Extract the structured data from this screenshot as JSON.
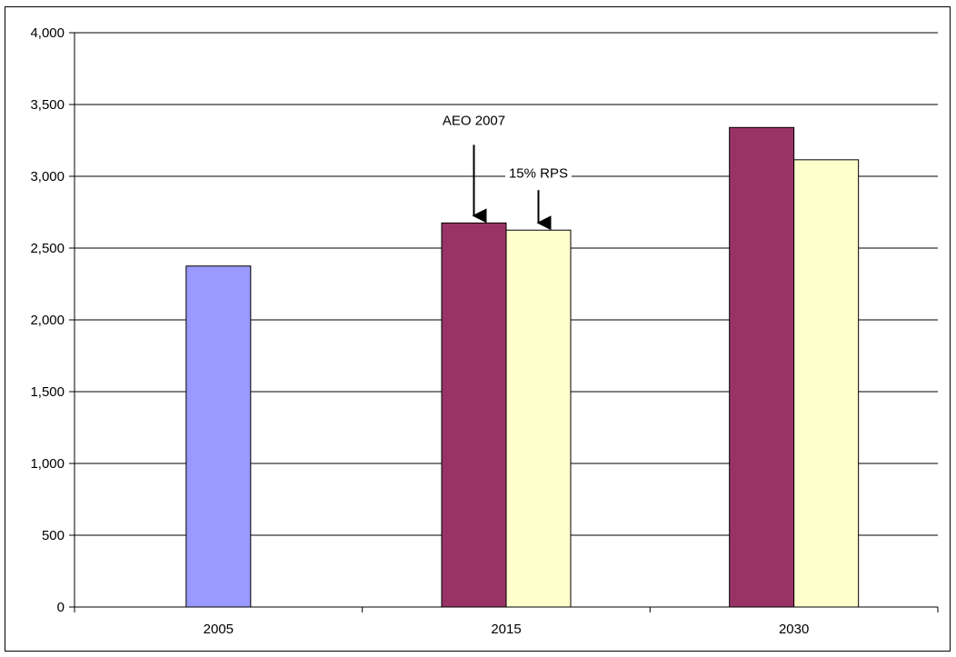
{
  "chart_data": {
    "type": "bar",
    "title": "",
    "xlabel": "",
    "ylabel": "",
    "categories": [
      "2005",
      "2015",
      "2030"
    ],
    "ylim": [
      0,
      4000
    ],
    "y_ticks": [
      "0",
      "500",
      "1,000",
      "1,500",
      "2,000",
      "2,500",
      "3,000",
      "3,500",
      "4,000"
    ],
    "grid": true,
    "legend": "none",
    "series": [
      {
        "color": "#9999ff",
        "values": [
          2375,
          null,
          null
        ]
      },
      {
        "color": "#993366",
        "values": [
          null,
          2675,
          3340
        ]
      },
      {
        "color": "#ffffcc",
        "values": [
          null,
          2625,
          3115
        ]
      }
    ],
    "annotations": [
      {
        "text": "AEO 2007",
        "target_category": "2015",
        "target_series": 1
      },
      {
        "text": "15% RPS",
        "target_category": "2015",
        "target_series": 2
      }
    ]
  }
}
